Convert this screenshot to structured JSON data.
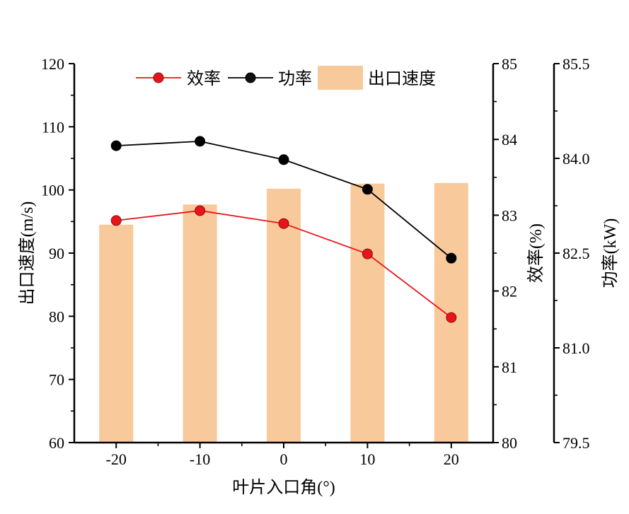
{
  "chart_data": {
    "type": "bar+line",
    "x_label": "叶片入口角(°)",
    "categories": [
      "-20",
      "-10",
      "0",
      "10",
      "20"
    ],
    "x_values": [
      -20,
      -10,
      0,
      10,
      20
    ],
    "left_axis": {
      "label": "出口速度(m/s)",
      "range": [
        60,
        120
      ],
      "ticks": [
        60,
        70,
        80,
        90,
        100,
        110,
        120
      ]
    },
    "right_axis_1": {
      "label": "效率(%)",
      "range": [
        80,
        85
      ],
      "ticks": [
        80,
        81,
        82,
        83,
        84,
        85
      ]
    },
    "right_axis_2": {
      "label": "功率(kW)",
      "range": [
        79.5,
        85.5
      ],
      "ticks": [
        79.5,
        81.0,
        82.5,
        84.0,
        85.5
      ],
      "tick_labels": [
        "79.5",
        "81.0",
        "82.5",
        "84.0",
        "85.5"
      ]
    },
    "series": [
      {
        "name": "出口速度",
        "kind": "bar",
        "axis": "left",
        "color": "#f8c99a",
        "values": [
          94.5,
          97.7,
          100.2,
          101.0,
          101.1
        ]
      },
      {
        "name": "效率",
        "kind": "line",
        "axis": "right_1",
        "color": "#e8141b",
        "values": [
          82.93,
          83.06,
          82.89,
          82.49,
          81.65
        ]
      },
      {
        "name": "功率",
        "kind": "line",
        "axis": "right_2",
        "color": "#000000",
        "values": [
          84.2,
          84.27,
          83.98,
          83.51,
          82.42
        ]
      }
    ],
    "legend": {
      "position": "top",
      "order": [
        "效率",
        "功率",
        "出口速度"
      ]
    }
  }
}
